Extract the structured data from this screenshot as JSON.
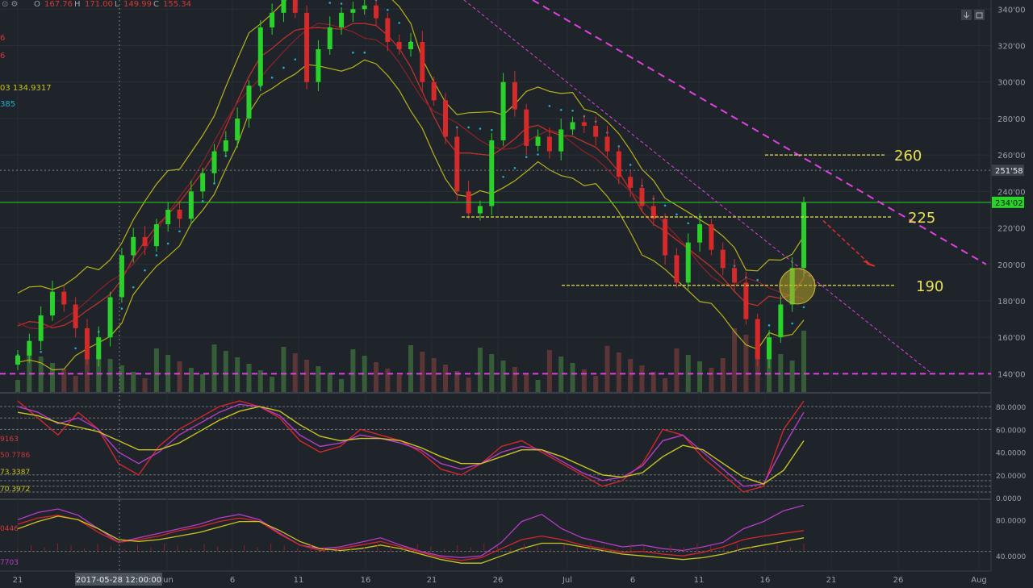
{
  "header": {
    "ohlc_prefix": "⊙ ⚙",
    "open_label": "O",
    "open_value": "167.76",
    "high_label": "H",
    "high_value": "171.00",
    "low_label": "L",
    "low_value": "149.99",
    "close_label": "C",
    "close_value": "155.34"
  },
  "toolbar": {
    "download_icon": "download-icon",
    "camera_icon": "camera-icon",
    "settings_icon": "settings-icon"
  },
  "left_values": {
    "line1": "6",
    "line2": "6",
    "line3": "03  134.9317",
    "line4": "385"
  },
  "stoch_values": {
    "v1": "9163",
    "v2": "50.7786",
    "v3": "73.3387",
    "v4": "70.3972"
  },
  "osc_values": {
    "v1": "0446",
    "v2": "7703"
  },
  "colors": {
    "background": "#1e2429",
    "up_candle": "#2bd12b",
    "down_candle": "#d62a2a",
    "bollinger": "#b7b21a",
    "ma_red": "#c0282e",
    "psar": "#1fb0c8",
    "trendline": "#e040e0",
    "support": "#e8e050",
    "current_price_line": "#28d428",
    "last_price_badge": "#28d428"
  },
  "chart_data": [
    {
      "type": "candlestick",
      "title": "",
      "ylim": [
        130,
        345
      ],
      "y_ticks": [
        "340'00",
        "320'00",
        "300'00",
        "280'00",
        "260'00",
        "240'00",
        "220'00",
        "200'00",
        "180'00",
        "160'00",
        "140'00"
      ],
      "x_ticks": [
        "21",
        "Jun",
        "6",
        "11",
        "16",
        "21",
        "26",
        "Jul",
        "6",
        "11",
        "16",
        "21",
        "26",
        "Aug"
      ],
      "crosshair_label": "2017-05-28 12:00:00",
      "last_price_badges": [
        {
          "label": "251'58",
          "value": 251.58
        },
        {
          "label": "234'02",
          "value": 234.02
        }
      ],
      "annotations": [
        {
          "text": "260",
          "value": 260
        },
        {
          "text": "225",
          "value": 225
        },
        {
          "text": "190",
          "value": 190
        }
      ],
      "horizontal_levels": [
        140,
        234.02
      ],
      "close_series_approx": [
        150,
        158,
        172,
        185,
        178,
        165,
        148,
        160,
        182,
        205,
        215,
        210,
        222,
        230,
        225,
        240,
        250,
        262,
        268,
        280,
        298,
        330,
        338,
        345,
        338,
        300,
        318,
        330,
        338,
        340,
        342,
        335,
        322,
        318,
        322,
        300,
        290,
        270,
        240,
        228,
        232,
        268,
        300,
        285,
        265,
        270,
        262,
        274,
        278,
        276,
        270,
        262,
        248,
        242,
        232,
        225,
        205,
        190,
        212,
        222,
        208,
        198,
        190,
        170,
        148,
        160,
        178,
        198,
        234
      ],
      "series": [
        {
          "name": "",
          "kind": "bollinger"
        },
        {
          "name": "",
          "kind": "moving-average"
        },
        {
          "name": "",
          "kind": "parabolic-sar"
        }
      ]
    },
    {
      "type": "line",
      "title": "",
      "ylim": [
        0,
        90
      ],
      "y_ticks": [
        "80.0000",
        "60.0000",
        "40.0000",
        "20.0000",
        "0.0000"
      ],
      "reference_levels": [
        80,
        70,
        60,
        20,
        15,
        10,
        5
      ],
      "series": [
        {
          "name": "",
          "values": [
            85,
            70,
            55,
            75,
            60,
            30,
            20,
            45,
            60,
            70,
            80,
            85,
            80,
            70,
            50,
            40,
            45,
            60,
            55,
            50,
            40,
            25,
            20,
            30,
            45,
            50,
            40,
            30,
            20,
            10,
            15,
            30,
            60,
            55,
            35,
            20,
            5,
            10,
            60,
            85
          ]
        },
        {
          "name": "",
          "values": [
            80,
            75,
            65,
            70,
            60,
            40,
            30,
            40,
            55,
            65,
            75,
            82,
            80,
            72,
            55,
            45,
            48,
            55,
            52,
            48,
            42,
            30,
            25,
            30,
            40,
            45,
            42,
            32,
            22,
            15,
            18,
            28,
            50,
            55,
            40,
            25,
            10,
            12,
            45,
            75
          ]
        },
        {
          "name": "",
          "values": [
            75,
            72,
            66,
            62,
            58,
            50,
            42,
            42,
            48,
            58,
            68,
            76,
            80,
            76,
            64,
            54,
            50,
            52,
            52,
            50,
            44,
            36,
            30,
            30,
            36,
            42,
            42,
            36,
            28,
            20,
            18,
            22,
            36,
            46,
            42,
            30,
            18,
            12,
            24,
            50
          ]
        }
      ]
    },
    {
      "type": "line",
      "title": "",
      "ylim": [
        25,
        100
      ],
      "y_ticks": [
        "80.0000",
        "40.0000"
      ],
      "reference_levels": [
        45
      ],
      "series": [
        {
          "name": "",
          "values": [
            80,
            88,
            92,
            85,
            70,
            55,
            60,
            65,
            70,
            75,
            82,
            86,
            80,
            65,
            52,
            48,
            50,
            55,
            60,
            52,
            45,
            40,
            38,
            40,
            55,
            78,
            86,
            70,
            60,
            55,
            50,
            52,
            48,
            46,
            50,
            55,
            70,
            78,
            90,
            96
          ]
        },
        {
          "name": "",
          "values": [
            75,
            82,
            85,
            80,
            66,
            55,
            58,
            62,
            68,
            72,
            78,
            82,
            78,
            64,
            52,
            46,
            48,
            52,
            56,
            50,
            44,
            38,
            35,
            38,
            48,
            58,
            62,
            58,
            52,
            48,
            44,
            45,
            42,
            40,
            44,
            50,
            58,
            62,
            65,
            68
          ]
        },
        {
          "name": "",
          "values": [
            70,
            78,
            84,
            80,
            70,
            58,
            56,
            58,
            62,
            66,
            72,
            78,
            78,
            68,
            56,
            48,
            46,
            48,
            52,
            48,
            42,
            36,
            32,
            32,
            40,
            48,
            54,
            54,
            50,
            46,
            42,
            40,
            38,
            36,
            38,
            42,
            48,
            52,
            56,
            60
          ]
        }
      ]
    }
  ]
}
